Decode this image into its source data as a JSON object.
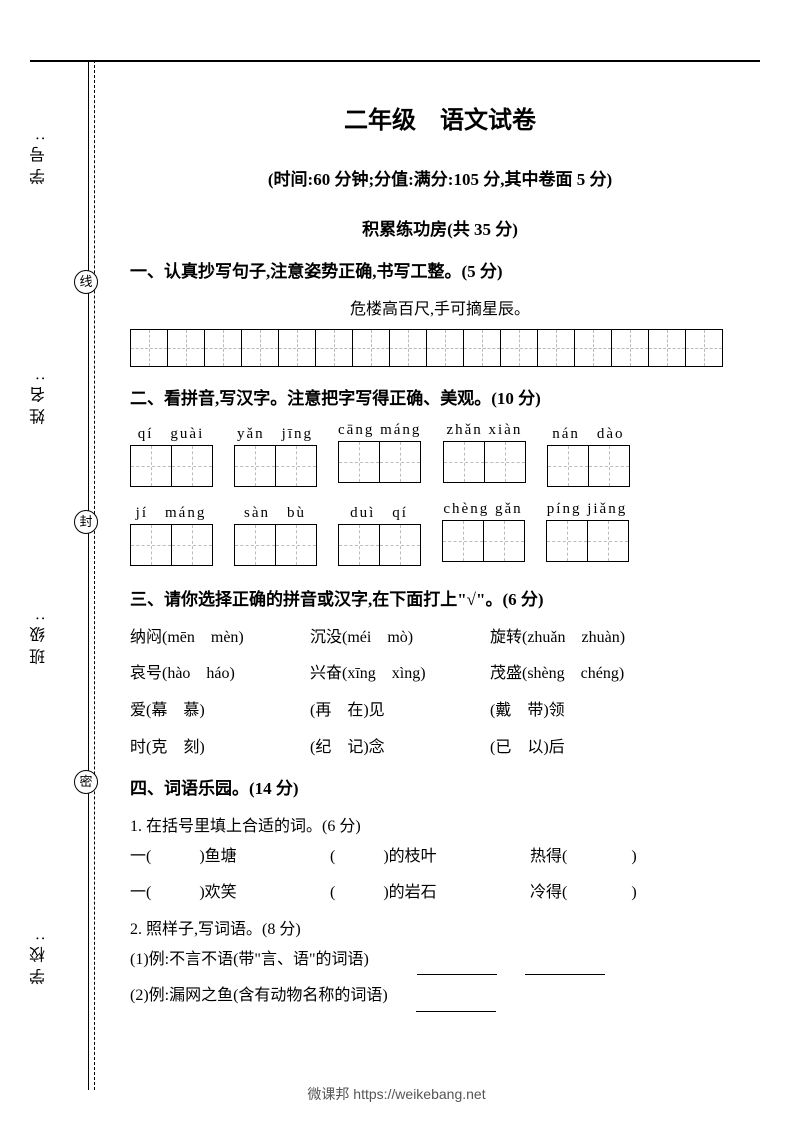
{
  "title": "二年级　语文试卷",
  "subtitle": "(时间:60 分钟;分值:满分:105 分,其中卷面 5 分)",
  "section1": "积累练功房(共 35 分)",
  "q1": {
    "heading": "一、认真抄写句子,注意姿势正确,书写工整。(5 分)",
    "sentence": "危楼高百尺,手可摘星辰。",
    "cells": 16
  },
  "q2": {
    "heading": "二、看拼音,写汉字。注意把字写得正确、美观。(10 分)",
    "row1": [
      {
        "pinyin": "qí　guài"
      },
      {
        "pinyin": "yǎn　jīng"
      },
      {
        "pinyin": "cāng máng"
      },
      {
        "pinyin": "zhǎn xiàn"
      },
      {
        "pinyin": "nán　dào"
      }
    ],
    "row2": [
      {
        "pinyin": "jí　máng"
      },
      {
        "pinyin": "sàn　bù"
      },
      {
        "pinyin": "duì　qí"
      },
      {
        "pinyin": "chèng gǎn"
      },
      {
        "pinyin": "píng jiǎng"
      }
    ]
  },
  "q3": {
    "heading": "三、请你选择正确的拼音或汉字,在下面打上\"√\"。(6 分)",
    "lines": [
      [
        "纳闷(mēn　mèn)",
        "沉没(méi　mò)",
        "旋转(zhuǎn　zhuàn)"
      ],
      [
        "哀号(hào　háo)",
        "兴奋(xīng　xìng)",
        "茂盛(shèng　chéng)"
      ],
      [
        "爱(幕　慕)",
        "(再　在)见",
        "(戴　带)领"
      ],
      [
        "时(克　刻)",
        "(纪　记)念",
        "(已　以)后"
      ]
    ]
  },
  "q4": {
    "heading": "四、词语乐园。(14 分)",
    "sub1": "1. 在括号里填上合适的词。(6 分)",
    "fills": [
      [
        "一(　　　)鱼塘",
        "(　　　)的枝叶",
        "热得(　　　　)"
      ],
      [
        "一(　　　)欢笑",
        "(　　　)的岩石",
        "冷得(　　　　)"
      ]
    ],
    "sub2": "2. 照样子,写词语。(8 分)",
    "ex1": "(1)例:不言不语(带\"言、语\"的词语)",
    "ex2": "(2)例:漏网之鱼(含有动物名称的词语)"
  },
  "margin": {
    "labels": [
      "学号:",
      "姓名:",
      "班级:",
      "学校:"
    ],
    "circles": [
      "线",
      "封",
      "密"
    ]
  },
  "footer": "微课邦 https://weikebang.net"
}
